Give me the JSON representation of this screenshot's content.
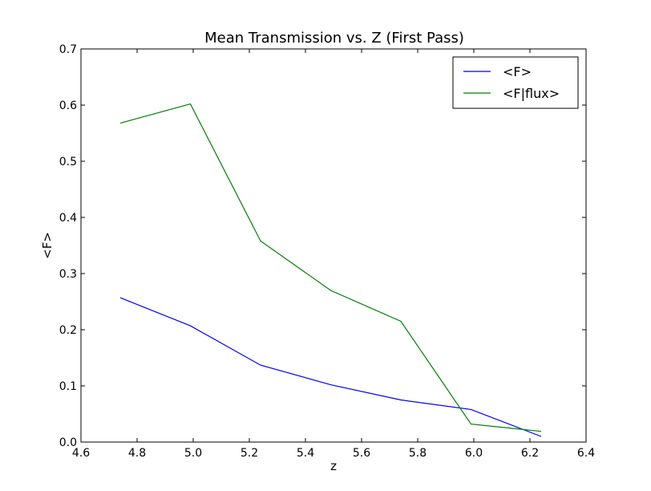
{
  "chart_data": {
    "type": "line",
    "title": "Mean Transmission vs. Z (First Pass)",
    "xlabel": "z",
    "ylabel": "<F>",
    "xlim": [
      4.6,
      6.4
    ],
    "ylim": [
      0.0,
      0.7
    ],
    "xticks": [
      "4.6",
      "4.8",
      "5.0",
      "5.2",
      "5.4",
      "5.6",
      "5.8",
      "6.0",
      "6.2",
      "6.4"
    ],
    "yticks": [
      "0.0",
      "0.1",
      "0.2",
      "0.3",
      "0.4",
      "0.5",
      "0.6",
      "0.7"
    ],
    "grid": false,
    "legend": "top-right",
    "x": [
      4.74,
      4.99,
      5.24,
      5.49,
      5.74,
      5.99,
      6.24
    ],
    "series": [
      {
        "name": "<F>",
        "color": "#0000ff",
        "values": [
          0.257,
          0.207,
          0.137,
          0.102,
          0.075,
          0.058,
          0.01
        ]
      },
      {
        "name": "<F|flux>",
        "color": "#008000",
        "values": [
          0.568,
          0.602,
          0.358,
          0.27,
          0.215,
          0.032,
          0.019
        ]
      }
    ]
  }
}
